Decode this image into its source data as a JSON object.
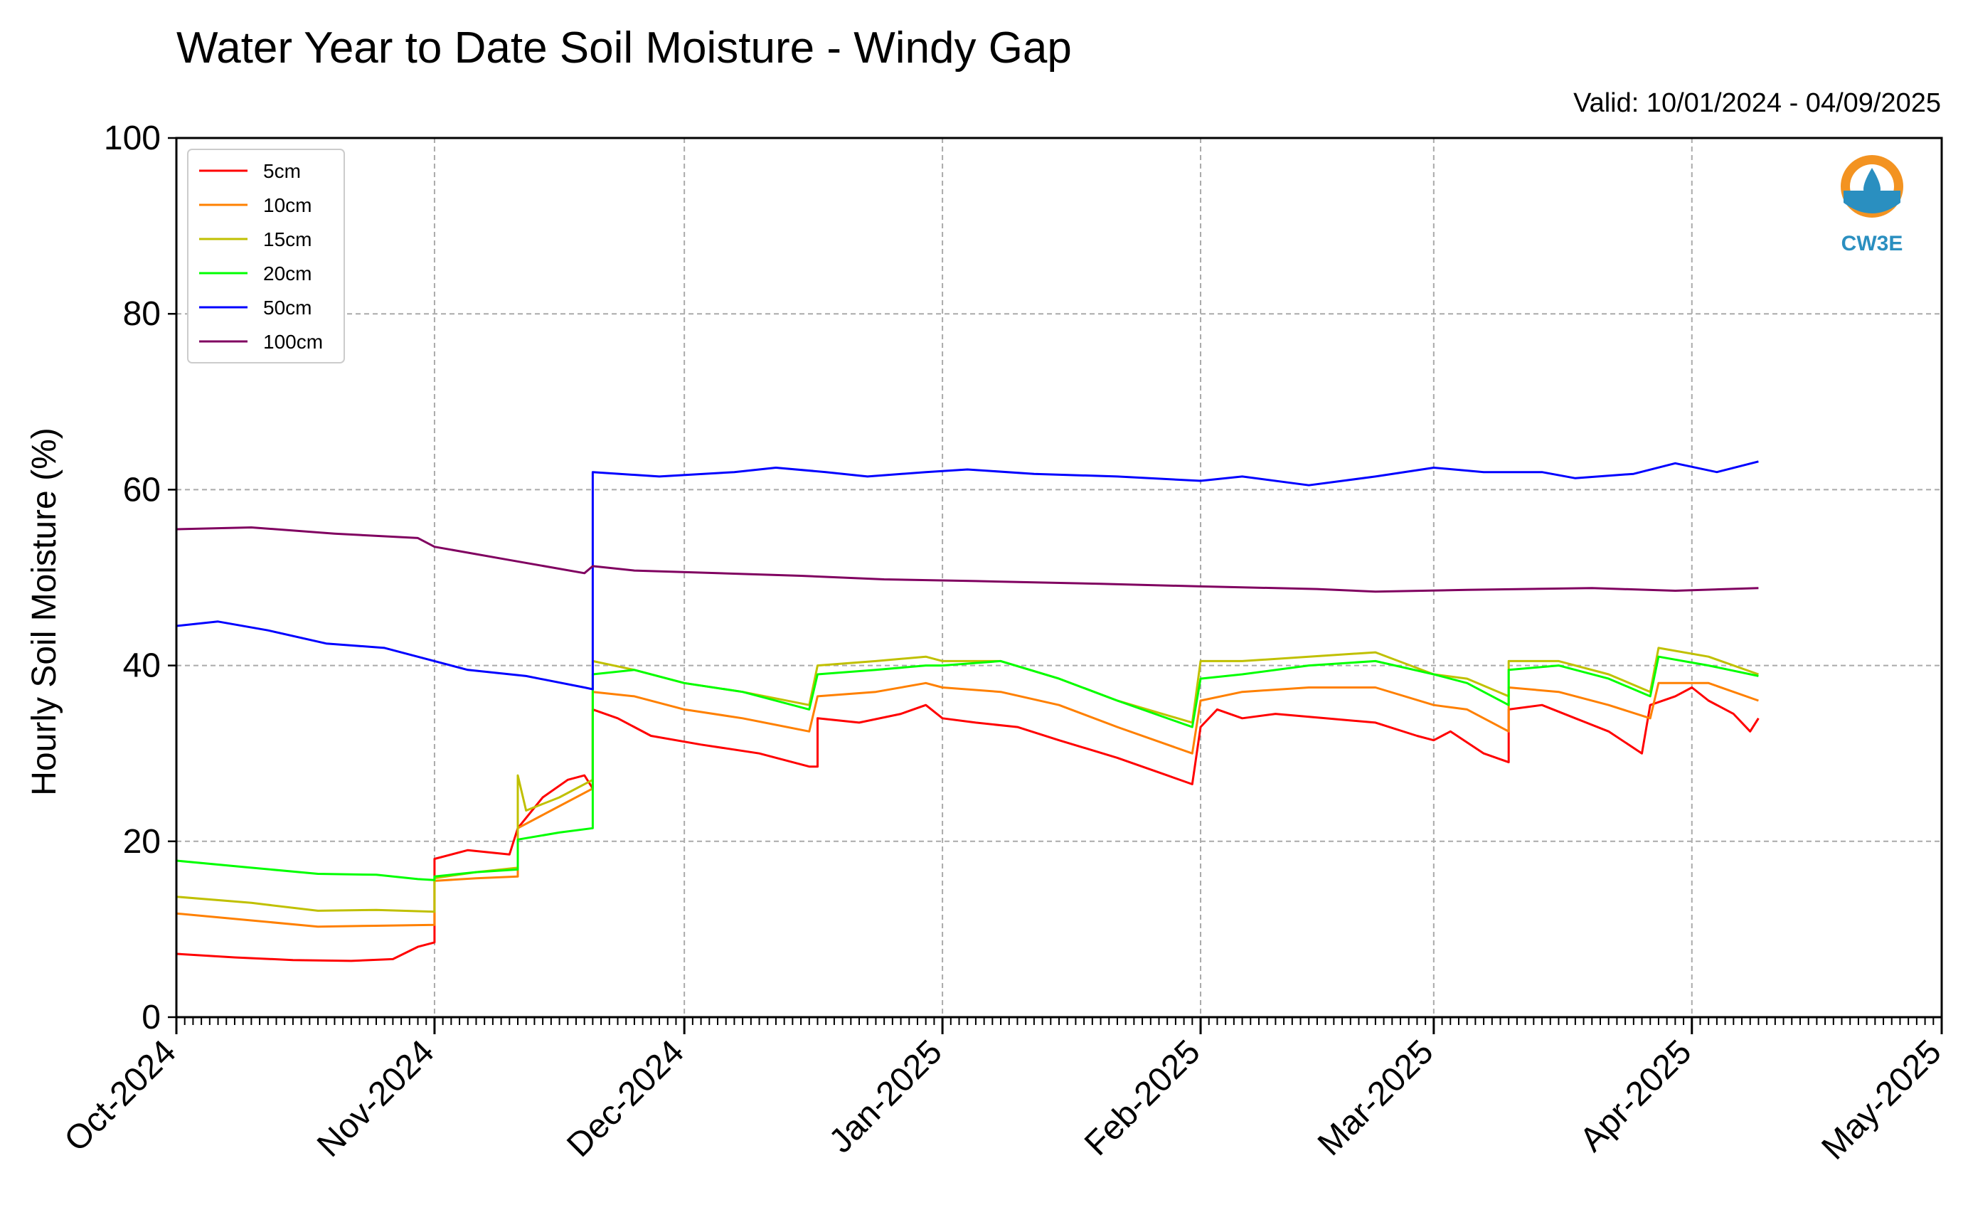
{
  "header": {
    "title": "Water Year to Date Soil Moisture - Windy Gap",
    "valid": "Valid: 10/01/2024 - 04/09/2025"
  },
  "logo": {
    "text": "CW3E",
    "icon": "cw3e-water-drop-logo"
  },
  "colors": {
    "5cm": "#ff0000",
    "10cm": "#ff8000",
    "15cm": "#c0c000",
    "20cm": "#00ff00",
    "50cm": "#0000ff",
    "100cm": "#800060"
  },
  "chart_data": {
    "type": "line",
    "title": "Water Year to Date Soil Moisture - Windy Gap",
    "ylabel": "Hourly Soil Moisture (%)",
    "xlabel": "",
    "ylim": [
      0,
      100
    ],
    "yticks": [
      0,
      20,
      40,
      60,
      80,
      100
    ],
    "xlim": [
      "2024-10-01",
      "2025-05-01"
    ],
    "xticks": [
      "2024-10-01",
      "2024-11-01",
      "2024-12-01",
      "2025-01-01",
      "2025-02-01",
      "2025-03-01",
      "2025-04-01",
      "2025-05-01"
    ],
    "xtick_labels": [
      "Oct-2024",
      "Nov-2024",
      "Dec-2024",
      "Jan-2025",
      "Feb-2025",
      "Mar-2025",
      "Apr-2025",
      "May-2025"
    ],
    "grid": true,
    "legend_position": "top-left",
    "series": [
      {
        "name": "5cm",
        "color": "#ff0000",
        "points": [
          [
            "2024-10-01",
            7.2
          ],
          [
            "2024-10-08",
            6.8
          ],
          [
            "2024-10-15",
            6.5
          ],
          [
            "2024-10-22",
            6.4
          ],
          [
            "2024-10-27",
            6.6
          ],
          [
            "2024-10-30",
            8.0
          ],
          [
            "2024-11-01",
            8.5
          ],
          [
            "2024-11-01",
            18.0
          ],
          [
            "2024-11-05",
            19.0
          ],
          [
            "2024-11-10",
            18.5
          ],
          [
            "2024-11-11",
            21.5
          ],
          [
            "2024-11-14",
            25.0
          ],
          [
            "2024-11-17",
            27.0
          ],
          [
            "2024-11-19",
            27.5
          ],
          [
            "2024-11-20",
            26.0
          ],
          [
            "2024-11-20",
            35.0
          ],
          [
            "2024-11-23",
            34.0
          ],
          [
            "2024-11-27",
            32.0
          ],
          [
            "2024-12-03",
            31.0
          ],
          [
            "2024-12-10",
            30.0
          ],
          [
            "2024-12-16",
            28.5
          ],
          [
            "2024-12-17",
            28.5
          ],
          [
            "2024-12-17",
            34.0
          ],
          [
            "2024-12-22",
            33.5
          ],
          [
            "2024-12-27",
            34.5
          ],
          [
            "2024-12-30",
            35.5
          ],
          [
            "2025-01-01",
            34.0
          ],
          [
            "2025-01-05",
            33.5
          ],
          [
            "2025-01-10",
            33.0
          ],
          [
            "2025-01-15",
            31.5
          ],
          [
            "2025-01-22",
            29.5
          ],
          [
            "2025-01-28",
            27.5
          ],
          [
            "2025-01-31",
            26.5
          ],
          [
            "2025-02-01",
            33.0
          ],
          [
            "2025-02-03",
            35.0
          ],
          [
            "2025-02-06",
            34.0
          ],
          [
            "2025-02-10",
            34.5
          ],
          [
            "2025-02-16",
            34.0
          ],
          [
            "2025-02-22",
            33.5
          ],
          [
            "2025-02-27",
            32.0
          ],
          [
            "2025-03-01",
            31.5
          ],
          [
            "2025-03-03",
            32.5
          ],
          [
            "2025-03-07",
            30.0
          ],
          [
            "2025-03-10",
            29.0
          ],
          [
            "2025-03-10",
            35.0
          ],
          [
            "2025-03-14",
            35.5
          ],
          [
            "2025-03-18",
            34.0
          ],
          [
            "2025-03-22",
            32.5
          ],
          [
            "2025-03-26",
            30.0
          ],
          [
            "2025-03-27",
            35.5
          ],
          [
            "2025-03-30",
            36.5
          ],
          [
            "2025-04-01",
            37.5
          ],
          [
            "2025-04-03",
            36.0
          ],
          [
            "2025-04-06",
            34.5
          ],
          [
            "2025-04-08",
            32.5
          ],
          [
            "2025-04-09",
            34.0
          ]
        ]
      },
      {
        "name": "10cm",
        "color": "#ff8000",
        "points": [
          [
            "2024-10-01",
            11.8
          ],
          [
            "2024-10-10",
            11.0
          ],
          [
            "2024-10-18",
            10.3
          ],
          [
            "2024-10-25",
            10.4
          ],
          [
            "2024-11-01",
            10.5
          ],
          [
            "2024-11-01",
            15.5
          ],
          [
            "2024-11-06",
            15.8
          ],
          [
            "2024-11-11",
            16.0
          ],
          [
            "2024-11-11",
            21.5
          ],
          [
            "2024-11-15",
            23.5
          ],
          [
            "2024-11-20",
            26.0
          ],
          [
            "2024-11-20",
            37.0
          ],
          [
            "2024-11-25",
            36.5
          ],
          [
            "2024-12-01",
            35.0
          ],
          [
            "2024-12-08",
            34.0
          ],
          [
            "2024-12-16",
            32.5
          ],
          [
            "2024-12-17",
            36.5
          ],
          [
            "2024-12-24",
            37.0
          ],
          [
            "2024-12-30",
            38.0
          ],
          [
            "2025-01-01",
            37.5
          ],
          [
            "2025-01-08",
            37.0
          ],
          [
            "2025-01-15",
            35.5
          ],
          [
            "2025-01-22",
            33.0
          ],
          [
            "2025-01-31",
            30.0
          ],
          [
            "2025-02-01",
            36.0
          ],
          [
            "2025-02-06",
            37.0
          ],
          [
            "2025-02-14",
            37.5
          ],
          [
            "2025-02-22",
            37.5
          ],
          [
            "2025-03-01",
            35.5
          ],
          [
            "2025-03-05",
            35.0
          ],
          [
            "2025-03-10",
            32.5
          ],
          [
            "2025-03-10",
            37.5
          ],
          [
            "2025-03-16",
            37.0
          ],
          [
            "2025-03-22",
            35.5
          ],
          [
            "2025-03-27",
            34.0
          ],
          [
            "2025-03-28",
            38.0
          ],
          [
            "2025-04-03",
            38.0
          ],
          [
            "2025-04-09",
            36.0
          ]
        ]
      },
      {
        "name": "15cm",
        "color": "#c0c000",
        "points": [
          [
            "2024-10-01",
            13.7
          ],
          [
            "2024-10-10",
            13.0
          ],
          [
            "2024-10-18",
            12.1
          ],
          [
            "2024-10-25",
            12.2
          ],
          [
            "2024-11-01",
            12.0
          ],
          [
            "2024-11-01",
            15.8
          ],
          [
            "2024-11-06",
            16.5
          ],
          [
            "2024-11-11",
            17.0
          ],
          [
            "2024-11-11",
            27.5
          ],
          [
            "2024-11-12",
            23.5
          ],
          [
            "2024-11-16",
            25.0
          ],
          [
            "2024-11-20",
            27.0
          ],
          [
            "2024-11-20",
            40.5
          ],
          [
            "2024-11-25",
            39.5
          ],
          [
            "2024-12-01",
            38.0
          ],
          [
            "2024-12-08",
            37.0
          ],
          [
            "2024-12-16",
            35.5
          ],
          [
            "2024-12-17",
            40.0
          ],
          [
            "2024-12-24",
            40.5
          ],
          [
            "2024-12-30",
            41.0
          ],
          [
            "2025-01-01",
            40.5
          ],
          [
            "2025-01-08",
            40.5
          ],
          [
            "2025-01-15",
            38.5
          ],
          [
            "2025-01-22",
            36.0
          ],
          [
            "2025-01-31",
            33.5
          ],
          [
            "2025-02-01",
            40.5
          ],
          [
            "2025-02-06",
            40.5
          ],
          [
            "2025-02-14",
            41.0
          ],
          [
            "2025-02-22",
            41.5
          ],
          [
            "2025-03-01",
            39.0
          ],
          [
            "2025-03-05",
            38.5
          ],
          [
            "2025-03-10",
            36.5
          ],
          [
            "2025-03-10",
            40.5
          ],
          [
            "2025-03-16",
            40.5
          ],
          [
            "2025-03-22",
            39.0
          ],
          [
            "2025-03-27",
            37.0
          ],
          [
            "2025-03-28",
            42.0
          ],
          [
            "2025-04-03",
            41.0
          ],
          [
            "2025-04-09",
            39.0
          ]
        ]
      },
      {
        "name": "20cm",
        "color": "#00ff00",
        "points": [
          [
            "2024-10-01",
            17.8
          ],
          [
            "2024-10-10",
            17.0
          ],
          [
            "2024-10-18",
            16.3
          ],
          [
            "2024-10-25",
            16.2
          ],
          [
            "2024-10-30",
            15.7
          ],
          [
            "2024-11-01",
            15.6
          ],
          [
            "2024-11-01",
            16.0
          ],
          [
            "2024-11-06",
            16.5
          ],
          [
            "2024-11-11",
            16.8
          ],
          [
            "2024-11-11",
            20.2
          ],
          [
            "2024-11-16",
            21.0
          ],
          [
            "2024-11-20",
            21.5
          ],
          [
            "2024-11-20",
            39.0
          ],
          [
            "2024-11-25",
            39.5
          ],
          [
            "2024-12-01",
            38.0
          ],
          [
            "2024-12-08",
            37.0
          ],
          [
            "2024-12-16",
            35.0
          ],
          [
            "2024-12-17",
            39.0
          ],
          [
            "2024-12-24",
            39.5
          ],
          [
            "2024-12-30",
            40.0
          ],
          [
            "2025-01-01",
            40.0
          ],
          [
            "2025-01-08",
            40.5
          ],
          [
            "2025-01-15",
            38.5
          ],
          [
            "2025-01-22",
            36.0
          ],
          [
            "2025-01-31",
            33.0
          ],
          [
            "2025-02-01",
            38.5
          ],
          [
            "2025-02-06",
            39.0
          ],
          [
            "2025-02-14",
            40.0
          ],
          [
            "2025-02-22",
            40.5
          ],
          [
            "2025-03-01",
            39.0
          ],
          [
            "2025-03-05",
            38.0
          ],
          [
            "2025-03-10",
            35.5
          ],
          [
            "2025-03-10",
            39.5
          ],
          [
            "2025-03-16",
            40.0
          ],
          [
            "2025-03-22",
            38.5
          ],
          [
            "2025-03-27",
            36.5
          ],
          [
            "2025-03-28",
            41.0
          ],
          [
            "2025-04-03",
            40.0
          ],
          [
            "2025-04-09",
            38.8
          ]
        ]
      },
      {
        "name": "50cm",
        "color": "#0000ff",
        "points": [
          [
            "2024-10-01",
            44.5
          ],
          [
            "2024-10-06",
            45.0
          ],
          [
            "2024-10-12",
            44.0
          ],
          [
            "2024-10-19",
            42.5
          ],
          [
            "2024-10-26",
            42.0
          ],
          [
            "2024-11-01",
            40.5
          ],
          [
            "2024-11-05",
            39.5
          ],
          [
            "2024-11-12",
            38.8
          ],
          [
            "2024-11-19",
            37.5
          ],
          [
            "2024-11-20",
            37.3
          ],
          [
            "2024-11-20",
            62.0
          ],
          [
            "2024-11-28",
            61.5
          ],
          [
            "2024-12-07",
            62.0
          ],
          [
            "2024-12-12",
            62.5
          ],
          [
            "2024-12-18",
            62.0
          ],
          [
            "2024-12-23",
            61.5
          ],
          [
            "2024-12-30",
            62.0
          ],
          [
            "2025-01-04",
            62.3
          ],
          [
            "2025-01-12",
            61.8
          ],
          [
            "2025-01-22",
            61.5
          ],
          [
            "2025-02-01",
            61.0
          ],
          [
            "2025-02-06",
            61.5
          ],
          [
            "2025-02-14",
            60.5
          ],
          [
            "2025-02-22",
            61.5
          ],
          [
            "2025-03-01",
            62.5
          ],
          [
            "2025-03-07",
            62.0
          ],
          [
            "2025-03-14",
            62.0
          ],
          [
            "2025-03-18",
            61.3
          ],
          [
            "2025-03-25",
            61.8
          ],
          [
            "2025-03-30",
            63.0
          ],
          [
            "2025-04-04",
            62.0
          ],
          [
            "2025-04-09",
            63.2
          ]
        ]
      },
      {
        "name": "100cm",
        "color": "#800060",
        "points": [
          [
            "2024-10-01",
            55.5
          ],
          [
            "2024-10-10",
            55.7
          ],
          [
            "2024-10-20",
            55.0
          ],
          [
            "2024-10-30",
            54.5
          ],
          [
            "2024-11-01",
            53.5
          ],
          [
            "2024-11-10",
            52.0
          ],
          [
            "2024-11-19",
            50.5
          ],
          [
            "2024-11-20",
            51.3
          ],
          [
            "2024-11-25",
            50.8
          ],
          [
            "2024-12-05",
            50.5
          ],
          [
            "2024-12-15",
            50.2
          ],
          [
            "2024-12-25",
            49.8
          ],
          [
            "2025-01-05",
            49.6
          ],
          [
            "2025-01-20",
            49.3
          ],
          [
            "2025-02-01",
            49.0
          ],
          [
            "2025-02-15",
            48.7
          ],
          [
            "2025-02-22",
            48.4
          ],
          [
            "2025-03-05",
            48.6
          ],
          [
            "2025-03-20",
            48.8
          ],
          [
            "2025-03-30",
            48.5
          ],
          [
            "2025-04-09",
            48.8
          ]
        ]
      }
    ]
  }
}
